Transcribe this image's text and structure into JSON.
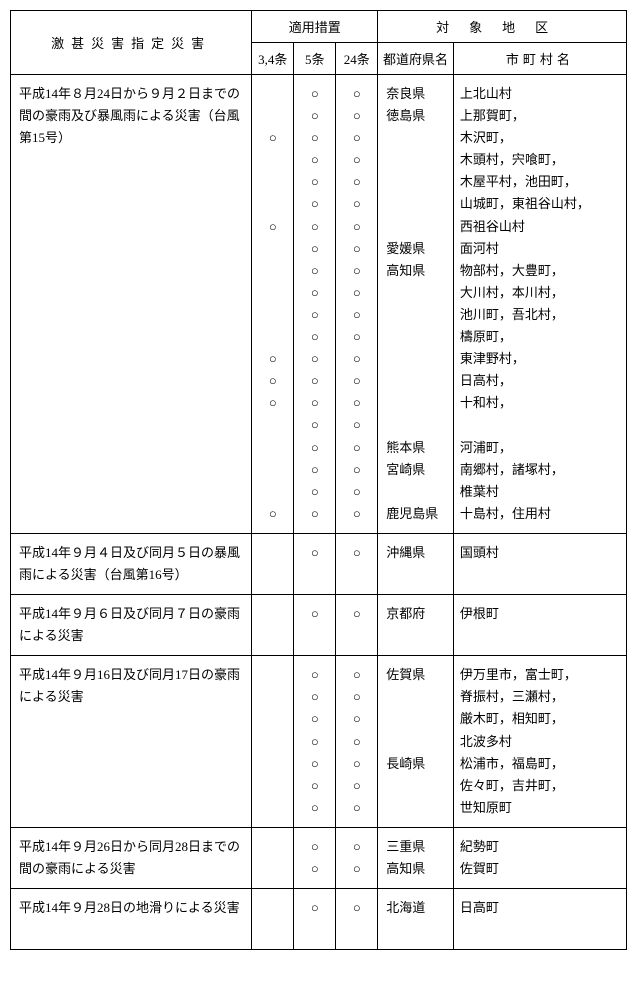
{
  "headers": {
    "disaster": "激甚災害指定災害",
    "measures": "適用措置",
    "area": "対象地区",
    "art34": "3,4条",
    "art5": "5条",
    "art24": "24条",
    "pref": "都道府県名",
    "city": "市町村名"
  },
  "mark": "○",
  "rows": [
    {
      "disaster": "平成14年８月24日から９月２日までの間の豪雨及び暴風雨による災害（台風第15号）",
      "lines": 20,
      "art34_idx": [
        2,
        6,
        12,
        13,
        14,
        19
      ],
      "art5_idx": [
        0,
        1,
        2,
        3,
        4,
        5,
        6,
        7,
        8,
        9,
        10,
        11,
        12,
        13,
        14,
        15,
        16,
        17,
        18,
        19
      ],
      "art24_idx": [
        0,
        1,
        2,
        3,
        4,
        5,
        6,
        7,
        8,
        9,
        10,
        11,
        12,
        13,
        14,
        15,
        16,
        17,
        18,
        19
      ],
      "pref_lines": [
        "奈良県",
        "徳島県",
        "",
        "",
        "",
        "",
        "",
        "愛媛県",
        "高知県",
        "",
        "",
        "",
        "",
        "",
        "",
        "",
        "熊本県",
        "宮崎県",
        "",
        "鹿児島県"
      ],
      "city_lines": [
        "上北山村",
        "上那賀町，",
        "木沢町，",
        "木頭村，宍喰町，",
        "木屋平村，池田町，",
        "山城町，東祖谷山村，",
        "西祖谷山村",
        "面河村",
        "物部村，大豊町，",
        "大川村，本川村，",
        "池川町，吾北村，",
        "檮原町，",
        "東津野村，",
        "日高村，",
        "十和村，",
        "",
        "河浦町，",
        "南郷村，諸塚村，",
        "椎葉村",
        "十島村，住用村"
      ]
    },
    {
      "disaster": "平成14年９月４日及び同月５日の暴風雨による災害（台風第16号）",
      "lines": 2,
      "art34_idx": [],
      "art5_idx": [
        0
      ],
      "art24_idx": [
        0
      ],
      "pref_lines": [
        "沖縄県",
        ""
      ],
      "city_lines": [
        "国頭村",
        ""
      ]
    },
    {
      "disaster": "平成14年９月６日及び同月７日の豪雨による災害",
      "lines": 2,
      "art34_idx": [],
      "art5_idx": [
        0
      ],
      "art24_idx": [
        0
      ],
      "pref_lines": [
        "京都府",
        ""
      ],
      "city_lines": [
        "伊根町",
        ""
      ]
    },
    {
      "disaster": "平成14年９月16日及び同月17日の豪雨による災害",
      "lines": 7,
      "art34_idx": [],
      "art5_idx": [
        0,
        1,
        2,
        3,
        4,
        5,
        6
      ],
      "art24_idx": [
        0,
        1,
        2,
        3,
        4,
        5,
        6
      ],
      "pref_lines": [
        "佐賀県",
        "",
        "",
        "",
        "長崎県",
        "",
        ""
      ],
      "city_lines": [
        "伊万里市，富士町，",
        "脊振村，三瀬村，",
        "厳木町，相知町，",
        "北波多村",
        "松浦市，福島町，",
        "佐々町，吉井町，",
        "世知原町"
      ]
    },
    {
      "disaster": "平成14年９月26日から同月28日までの間の豪雨による災害",
      "lines": 2,
      "art34_idx": [],
      "art5_idx": [
        0,
        1
      ],
      "art24_idx": [
        0,
        1
      ],
      "pref_lines": [
        "三重県",
        "高知県"
      ],
      "city_lines": [
        "紀勢町",
        "佐賀町"
      ]
    },
    {
      "disaster": "平成14年９月28日の地滑りによる災害",
      "lines": 2,
      "art34_idx": [],
      "art5_idx": [
        0
      ],
      "art24_idx": [
        0
      ],
      "pref_lines": [
        "北海道",
        ""
      ],
      "city_lines": [
        "日高町",
        ""
      ]
    }
  ]
}
